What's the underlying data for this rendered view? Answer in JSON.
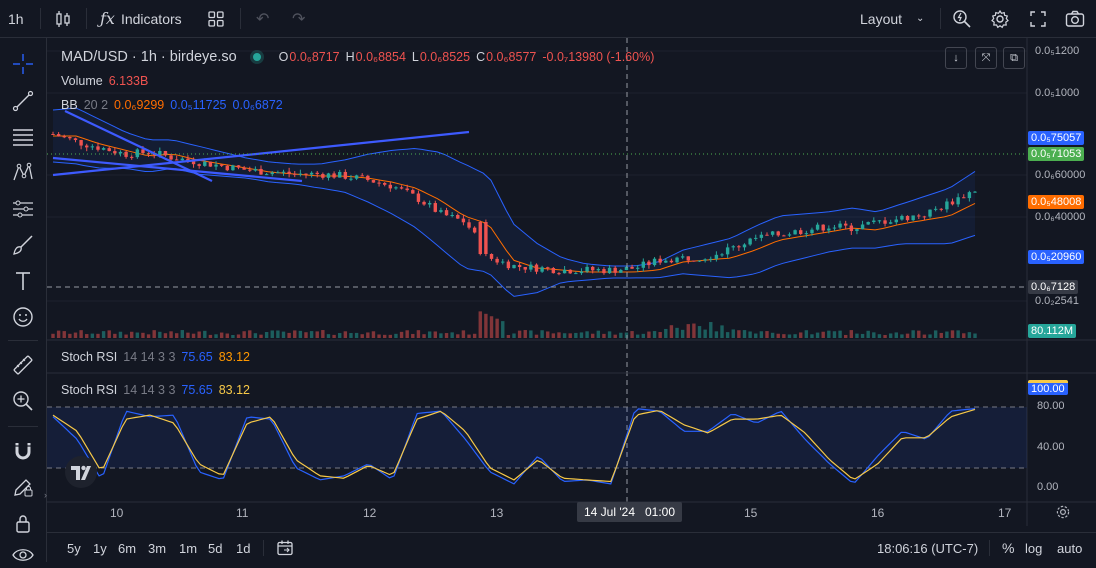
{
  "toolbar": {
    "interval": "1h",
    "indicators_label": "Indicators",
    "layout_label": "Layout"
  },
  "legend": {
    "symbol": "MAD/USD · 1h · birdeye.so",
    "open_label": "O",
    "open": "0.0₆8717",
    "high_label": "H",
    "high": "0.0₆8854",
    "low_label": "L",
    "low": "0.0₆8525",
    "close_label": "C",
    "close": "0.0₆8577",
    "change": "-0.0₇13980 (-1.60%)",
    "volume_label": "Volume",
    "volume": "6.133B",
    "bb_label": "BB",
    "bb_params": "20 2",
    "bb_basis": "0.0₆9299",
    "bb_upper": "0.0₅11725",
    "bb_lower": "0.0₆6872",
    "stoch_label_1": "Stoch RSI",
    "stoch_params_1": "14 14 3 3",
    "stoch_k_1": "75.65",
    "stoch_d_1": "83.12",
    "stoch_label_2": "Stoch RSI",
    "stoch_params_2": "14 14 3 3",
    "stoch_k_2": "75.65",
    "stoch_d_2": "83.12"
  },
  "price_axis": {
    "ticks": [
      "0.0₅1200",
      "0.0₅1000",
      "0.0₆60000",
      "0.0₆40000",
      "0.0₂2541"
    ],
    "pills": {
      "bb_upper": "0.0₅75057",
      "last_price": "0.0₅71053",
      "bb_basis": "0.0₅48008",
      "bb_lower": "0.0₅20960",
      "crosshair": "0.0₆7128",
      "volume": "80.112M",
      "stoch": "100.00"
    }
  },
  "stoch_axis": {
    "ticks": [
      "80.00",
      "40.00",
      "0.00"
    ]
  },
  "time_axis": {
    "ticks": [
      "10",
      "11",
      "12",
      "13",
      "15",
      "16",
      "17"
    ],
    "crosshair": "14 Jul '24   01:00"
  },
  "bottom": {
    "ranges": [
      "5y",
      "1y",
      "6m",
      "3m",
      "1m",
      "5d",
      "1d"
    ],
    "clock": "18:06:16 (UTC-7)",
    "percent": "%",
    "log": "log",
    "auto": "auto"
  },
  "colors": {
    "up": "#26a69a",
    "down": "#ef5350",
    "bb_band": "#2962ff",
    "basis": "#ff6d00",
    "stoch_k": "#2962ff",
    "stoch_d": "#f7c948",
    "trendline": "#3d5afe",
    "last_price": "#4caf50"
  },
  "chart_data": {
    "type": "candlestick",
    "description": "MAD/USD 1h candles with Bollinger Bands, volume, and Stochastic RSI",
    "price_trend": [
      1.02,
      0.98,
      0.95,
      0.92,
      0.93,
      0.9,
      0.88,
      0.86,
      0.84,
      0.83,
      0.82,
      0.82,
      0.81,
      0.79,
      0.76,
      0.7,
      0.62,
      0.58,
      0.4,
      0.36,
      0.35,
      0.34,
      0.34,
      0.34,
      0.35,
      0.39,
      0.4,
      0.41,
      0.45,
      0.5,
      0.52,
      0.54,
      0.56,
      0.55,
      0.58,
      0.6,
      0.62,
      0.68,
      0.74
    ],
    "stoch_k": [
      88,
      60,
      10,
      95,
      88,
      90,
      20,
      10,
      88,
      85,
      25,
      10,
      15,
      30,
      10,
      92,
      95,
      60,
      20,
      5,
      40,
      8,
      10,
      5,
      98,
      95,
      70,
      70,
      92,
      80,
      95,
      60,
      30,
      5,
      40,
      70,
      60,
      95,
      98
    ],
    "stoch_d": [
      90,
      70,
      20,
      85,
      90,
      80,
      30,
      15,
      80,
      88,
      35,
      15,
      12,
      28,
      15,
      85,
      95,
      70,
      25,
      10,
      35,
      12,
      10,
      8,
      90,
      96,
      78,
      68,
      85,
      85,
      90,
      68,
      35,
      10,
      30,
      62,
      62,
      88,
      97
    ]
  }
}
